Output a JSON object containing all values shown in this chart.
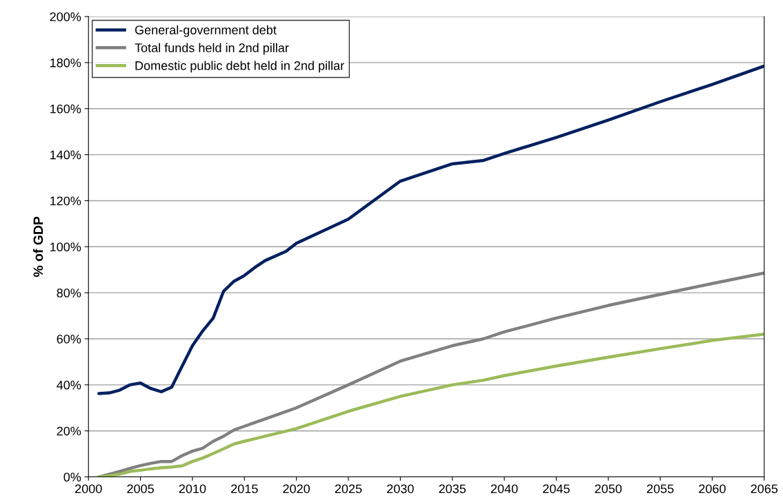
{
  "chart_data": {
    "type": "line",
    "ylabel": "% of GDP",
    "x": [
      2001,
      2002,
      2003,
      2004,
      2005,
      2006,
      2007,
      2008,
      2009,
      2010,
      2011,
      2012,
      2013,
      2014,
      2015,
      2016,
      2017,
      2019,
      2020,
      2025,
      2030,
      2035,
      2038,
      2040,
      2045,
      2050,
      2055,
      2060,
      2065
    ],
    "series": [
      {
        "name": "General-government debt",
        "color": "#002060",
        "values": [
          36.2,
          36.5,
          37.7,
          40,
          40.8,
          38.4,
          37,
          39,
          48,
          57,
          63.5,
          69,
          80.7,
          85,
          87.5,
          91,
          94,
          98,
          101.5,
          112,
          128.5,
          136,
          137.5,
          140.5,
          147.5,
          155,
          163,
          170.5,
          178.5
        ]
      },
      {
        "name": "Total funds held in 2nd pillar",
        "color": "#808080",
        "values": [
          0,
          1.2,
          2.4,
          3.7,
          4.9,
          5.9,
          6.7,
          6.7,
          9.2,
          11.2,
          12.5,
          15.5,
          17.7,
          20.4,
          22,
          23.6,
          25.2,
          28.4,
          30,
          40,
          50.3,
          57,
          60,
          63,
          69,
          74.5,
          79.3,
          84,
          88.6
        ]
      },
      {
        "name": "Domestic public debt held in 2nd pillar",
        "color": "#9bbb59",
        "values": [
          0,
          0.5,
          1.2,
          2.4,
          2.9,
          3.5,
          4,
          4.3,
          4.8,
          6.7,
          8.2,
          10.2,
          12.2,
          14.3,
          15.5,
          16.6,
          17.7,
          19.9,
          21,
          28.5,
          35,
          40,
          42,
          44,
          48.2,
          52,
          55.7,
          59.3,
          62
        ]
      }
    ],
    "xlim": [
      2000,
      2065
    ],
    "xticks": [
      2000,
      2005,
      2010,
      2015,
      2020,
      2025,
      2030,
      2035,
      2040,
      2045,
      2050,
      2055,
      2060,
      2065
    ],
    "ylim": [
      0,
      200
    ],
    "yticks": [
      {
        "value": 0,
        "label": "0%"
      },
      {
        "value": 20,
        "label": "20%"
      },
      {
        "value": 40,
        "label": "40%"
      },
      {
        "value": 60,
        "label": "60%"
      },
      {
        "value": 80,
        "label": "80%"
      },
      {
        "value": 100,
        "label": "100%"
      },
      {
        "value": 120,
        "label": "120%"
      },
      {
        "value": 140,
        "label": "140%"
      },
      {
        "value": 160,
        "label": "160%"
      },
      {
        "value": 180,
        "label": "180%"
      },
      {
        "value": 200,
        "label": "200%"
      }
    ],
    "grid": "y",
    "legend": "top left",
    "line_style": "solid",
    "marker": "none"
  }
}
